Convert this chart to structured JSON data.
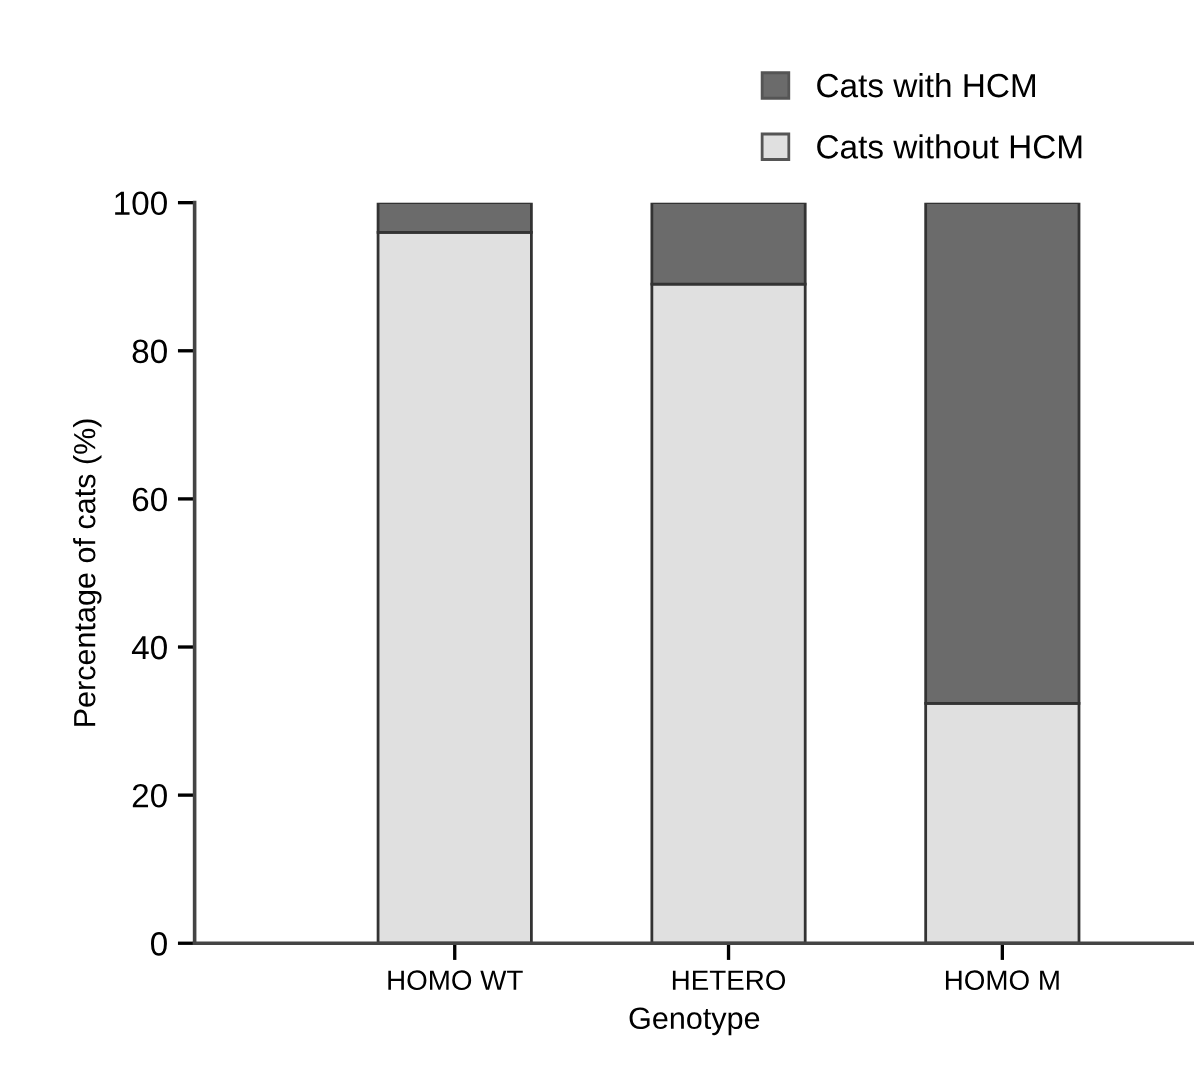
{
  "chart_data": {
    "type": "bar",
    "stacked": true,
    "xlabel": "Genotype",
    "ylabel": "Percentage of cats (%)",
    "categories": [
      "HOMO WT",
      "HETERO",
      "HOMO M"
    ],
    "series": [
      {
        "name": "Cats without HCM",
        "color": "#e0e0e0",
        "values": [
          96,
          89,
          32.4
        ]
      },
      {
        "name": "Cats with HCM",
        "color": "#6b6b6b",
        "values": [
          4,
          11,
          67.6
        ]
      }
    ],
    "ylim": [
      0,
      100
    ],
    "yticks": [
      0,
      20,
      40,
      60,
      80,
      100
    ],
    "grid": false,
    "legend": "top right"
  }
}
